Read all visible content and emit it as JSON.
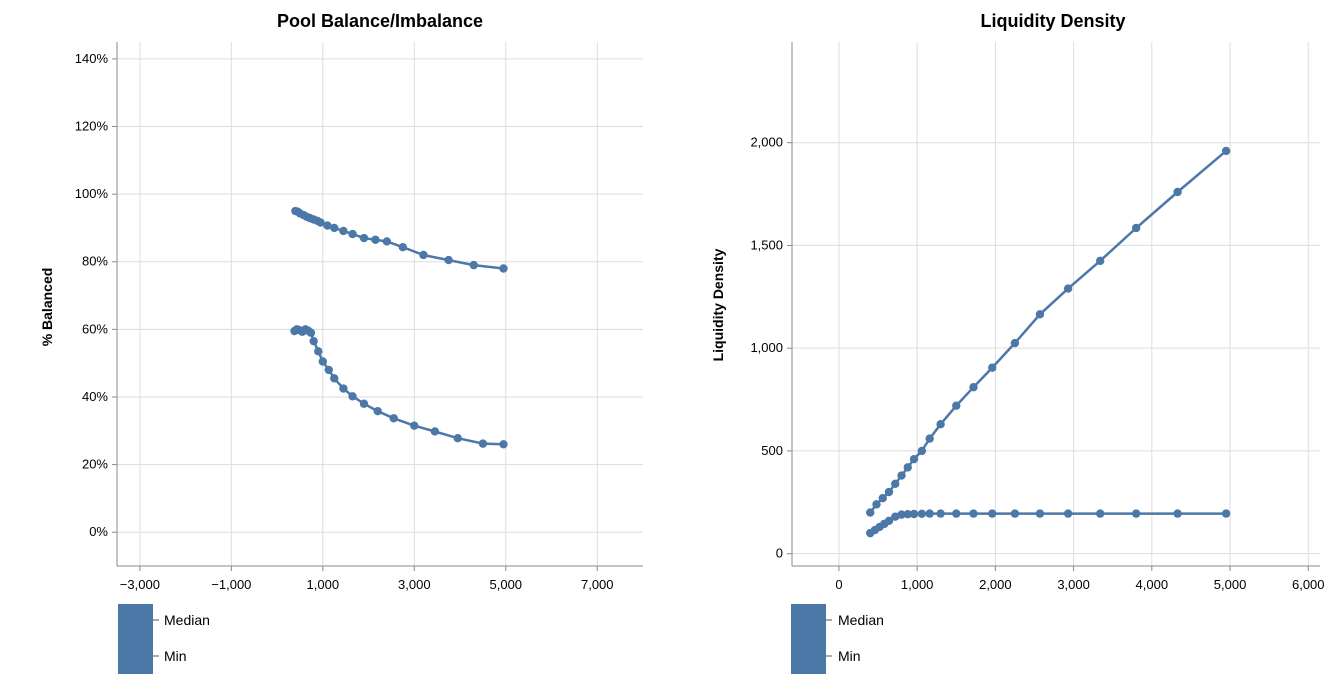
{
  "chart_data": [
    {
      "type": "line",
      "title": "Pool Balance/Imbalance",
      "xlabel": "",
      "ylabel": "% Balanced",
      "xlim": [
        -3500,
        8000
      ],
      "ylim": [
        -10,
        145
      ],
      "x_ticks": [
        -3000,
        -1000,
        1000,
        3000,
        5000,
        7000
      ],
      "x_tick_labels": [
        "−3,000",
        "−1,000",
        "1,000",
        "3,000",
        "5,000",
        "7,000"
      ],
      "y_ticks": [
        0,
        20,
        40,
        60,
        80,
        100,
        120,
        140
      ],
      "y_tick_labels": [
        "0%",
        "20%",
        "40%",
        "60%",
        "80%",
        "100%",
        "120%",
        "140%"
      ],
      "grid": true,
      "legend": {
        "position": "bottom-left",
        "color": "#4c78a8",
        "entries": [
          "Median",
          "Min"
        ]
      },
      "color": "#4c78a8",
      "series": [
        {
          "x": [
            400,
            450,
            500,
            580,
            650,
            720,
            800,
            880,
            950,
            1100,
            1250,
            1450,
            1650,
            1900,
            2150,
            2400,
            2750,
            3200,
            3750,
            4300,
            4950
          ],
          "values": [
            95,
            94.8,
            94.3,
            93.8,
            93.3,
            92.9,
            92.5,
            92.1,
            91.6,
            90.7,
            90,
            89.1,
            88.2,
            87,
            86.5,
            86,
            84.3,
            82,
            80.5,
            79,
            78
          ]
        },
        {
          "x": [
            380,
            430,
            480,
            550,
            620,
            680,
            740,
            800,
            900,
            1000,
            1130,
            1250,
            1450,
            1650,
            1900,
            2200,
            2550,
            3000,
            3450,
            3950,
            4500,
            4950
          ],
          "values": [
            59.5,
            60,
            59.8,
            59.3,
            60,
            59.6,
            59,
            56.5,
            53.5,
            50.5,
            48,
            45.5,
            42.5,
            40.2,
            38,
            35.8,
            33.7,
            31.5,
            29.8,
            27.8,
            26.2,
            26
          ]
        }
      ]
    },
    {
      "type": "line",
      "title": "Liquidity Density",
      "xlabel": "",
      "ylabel": "Liquidity Density",
      "xlim": [
        -600,
        6150
      ],
      "ylim": [
        -60,
        2490
      ],
      "x_ticks": [
        0,
        1000,
        2000,
        3000,
        4000,
        5000,
        6000
      ],
      "x_tick_labels": [
        "0",
        "1,000",
        "2,000",
        "3,000",
        "4,000",
        "5,000",
        "6,000"
      ],
      "y_ticks": [
        0,
        500,
        1000,
        1500,
        2000
      ],
      "y_tick_labels": [
        "0",
        "500",
        "1,000",
        "1,500",
        "2,000"
      ],
      "grid": true,
      "legend": {
        "position": "bottom-left",
        "color": "#4c78a8",
        "entries": [
          "Median",
          "Min"
        ]
      },
      "color": "#4c78a8",
      "series": [
        {
          "x": [
            400,
            480,
            560,
            640,
            720,
            800,
            880,
            960,
            1060,
            1160,
            1300,
            1500,
            1720,
            1960,
            2250,
            2570,
            2930,
            3340,
            3800,
            4330,
            4950
          ],
          "values": [
            200,
            240,
            270,
            300,
            340,
            380,
            420,
            460,
            500,
            560,
            630,
            720,
            810,
            905,
            1025,
            1165,
            1290,
            1425,
            1585,
            1760,
            1960
          ]
        },
        {
          "x": [
            400,
            460,
            520,
            580,
            640,
            720,
            800,
            880,
            960,
            1060,
            1160,
            1300,
            1500,
            1720,
            1960,
            2250,
            2570,
            2930,
            3340,
            3800,
            4330,
            4950
          ],
          "values": [
            100,
            115,
            130,
            145,
            160,
            180,
            190,
            192,
            193,
            194,
            195,
            195,
            195,
            195,
            195,
            195,
            195,
            195,
            195,
            195,
            195,
            195
          ]
        }
      ]
    }
  ]
}
